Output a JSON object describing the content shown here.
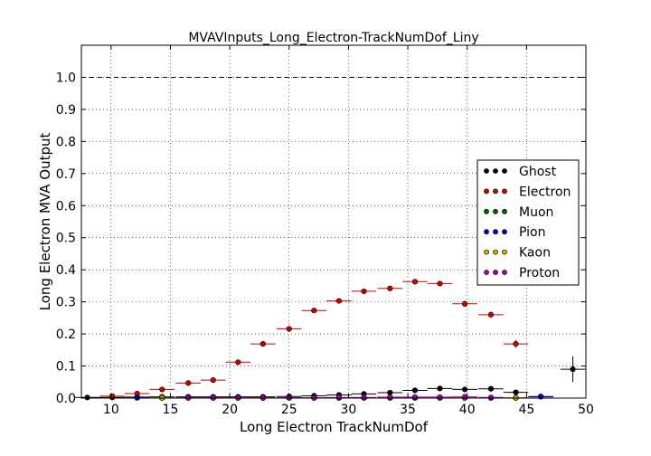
{
  "chart_data": {
    "type": "scatter",
    "title": "MVAVInputs_Long_Electron-TrackNumDof_Liny",
    "xlabel": "Long Electron TrackNumDof",
    "ylabel": "Long Electron MVA Output",
    "xlim": [
      7.5,
      50
    ],
    "ylim": [
      0,
      1.1
    ],
    "xticks": [
      "10",
      "15",
      "20",
      "25",
      "30",
      "35",
      "40",
      "45",
      "50"
    ],
    "yticks": [
      "0.0",
      "0.1",
      "0.2",
      "0.3",
      "0.4",
      "0.5",
      "0.6",
      "0.7",
      "0.8",
      "0.9",
      "1.0"
    ],
    "grid": true,
    "reference_line_y": 1.0,
    "legend_position": "right",
    "bin_half_width": 1.05,
    "series": [
      {
        "name": "Ghost",
        "color": "#000000",
        "x": [
          8.0,
          10.1,
          12.2,
          14.3,
          16.5,
          18.6,
          20.7,
          22.8,
          25.0,
          27.1,
          29.2,
          31.3,
          33.5,
          35.6,
          37.7,
          39.8,
          42.0,
          44.1,
          46.2,
          48.9
        ],
        "y": [
          0.002,
          0.002,
          0.003,
          0.004,
          0.004,
          0.004,
          0.004,
          0.004,
          0.005,
          0.007,
          0.01,
          0.013,
          0.017,
          0.024,
          0.03,
          0.027,
          0.029,
          0.018,
          0.005,
          0.09
        ],
        "yerr": [
          0.001,
          0.001,
          0.001,
          0.001,
          0.001,
          0.001,
          0.001,
          0.001,
          0.001,
          0.002,
          0.002,
          0.002,
          0.003,
          0.003,
          0.004,
          0.004,
          0.005,
          0.006,
          0.004,
          0.04
        ]
      },
      {
        "name": "Electron",
        "color": "#cc0000",
        "x": [
          10.1,
          12.2,
          14.3,
          16.5,
          18.6,
          20.7,
          22.8,
          25.0,
          27.1,
          29.2,
          31.3,
          33.5,
          35.6,
          37.7,
          39.8,
          42.0,
          44.1
        ],
        "y": [
          0.006,
          0.014,
          0.027,
          0.047,
          0.056,
          0.112,
          0.169,
          0.216,
          0.273,
          0.303,
          0.333,
          0.342,
          0.363,
          0.357,
          0.294,
          0.26,
          0.169
        ],
        "yerr": [
          0.002,
          0.003,
          0.004,
          0.005,
          0.005,
          0.006,
          0.007,
          0.007,
          0.007,
          0.007,
          0.007,
          0.007,
          0.008,
          0.008,
          0.009,
          0.01,
          0.013
        ]
      },
      {
        "name": "Muon",
        "color": "#006600",
        "x": [
          12.2,
          14.3,
          16.5,
          18.6,
          20.7,
          22.8,
          25.0,
          27.1,
          29.2,
          31.3,
          33.5,
          35.6,
          37.7,
          39.8,
          42.0,
          44.1
        ],
        "y": [
          0.001,
          0.001,
          0.001,
          0.001,
          0.001,
          0.001,
          0.001,
          0.001,
          0.001,
          0.001,
          0.001,
          0.001,
          0.001,
          0.001,
          0.001,
          0.001
        ],
        "yerr": [
          0.0005,
          0.0005,
          0.0005,
          0.0005,
          0.0005,
          0.0005,
          0.0005,
          0.0005,
          0.0005,
          0.0005,
          0.0005,
          0.0005,
          0.0005,
          0.0005,
          0.0005,
          0.0005
        ]
      },
      {
        "name": "Pion",
        "color": "#0000cc",
        "x": [
          12.2,
          14.3,
          16.5,
          18.6,
          20.7,
          22.8,
          25.0,
          27.1,
          29.2,
          31.3,
          33.5,
          35.6,
          37.7,
          39.8,
          42.0,
          44.1,
          46.2
        ],
        "y": [
          0.001,
          0.001,
          0.001,
          0.001,
          0.001,
          0.001,
          0.001,
          0.001,
          0.001,
          0.001,
          0.001,
          0.001,
          0.001,
          0.001,
          0.001,
          0.001,
          0.004
        ],
        "yerr": [
          0.0005,
          0.0005,
          0.0005,
          0.0005,
          0.0005,
          0.0005,
          0.0005,
          0.0005,
          0.0005,
          0.0005,
          0.0005,
          0.0005,
          0.0005,
          0.0005,
          0.0005,
          0.0005,
          0.002
        ]
      },
      {
        "name": "Kaon",
        "color": "#ccaa00",
        "x": [
          14.3,
          16.5,
          18.6,
          20.7,
          22.8,
          25.0,
          27.1,
          29.2,
          31.3,
          33.5,
          35.6,
          37.7,
          39.8,
          42.0,
          44.1
        ],
        "y": [
          0.001,
          0.001,
          0.001,
          0.001,
          0.001,
          0.001,
          0.001,
          0.001,
          0.001,
          0.001,
          0.001,
          0.001,
          0.001,
          0.001,
          0.001
        ],
        "yerr": [
          0.0005,
          0.0005,
          0.0005,
          0.0005,
          0.0005,
          0.0005,
          0.0005,
          0.0005,
          0.0005,
          0.0005,
          0.0005,
          0.0005,
          0.0005,
          0.0005,
          0.0005
        ]
      },
      {
        "name": "Proton",
        "color": "#aa00aa",
        "x": [
          16.5,
          18.6,
          20.7,
          22.8,
          25.0,
          27.1,
          29.2,
          31.3,
          33.5,
          35.6,
          37.7,
          39.8,
          42.0
        ],
        "y": [
          0.001,
          0.001,
          0.001,
          0.001,
          0.001,
          0.001,
          0.002,
          0.002,
          0.003,
          0.003,
          0.003,
          0.004,
          0.002
        ],
        "yerr": [
          0.0005,
          0.0005,
          0.0005,
          0.0005,
          0.0005,
          0.0005,
          0.001,
          0.001,
          0.001,
          0.001,
          0.001,
          0.002,
          0.001
        ]
      }
    ]
  }
}
